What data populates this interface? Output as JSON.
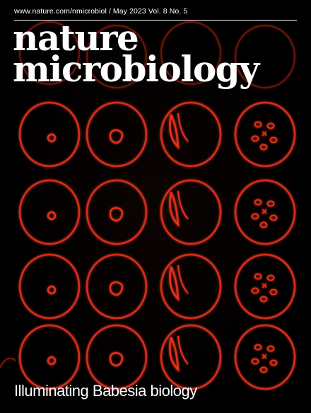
{
  "cover": {
    "header_line": "www.nature.com/nmicrobiol / May 2023 Vol. 8 No. 5",
    "title_line1": "nature",
    "title_line2": "microbiology",
    "cover_line": "Illuminating Babesia biology"
  },
  "colors": {
    "background": "#000000",
    "cell_membrane": "#e0301c",
    "text": "#ffffff"
  }
}
